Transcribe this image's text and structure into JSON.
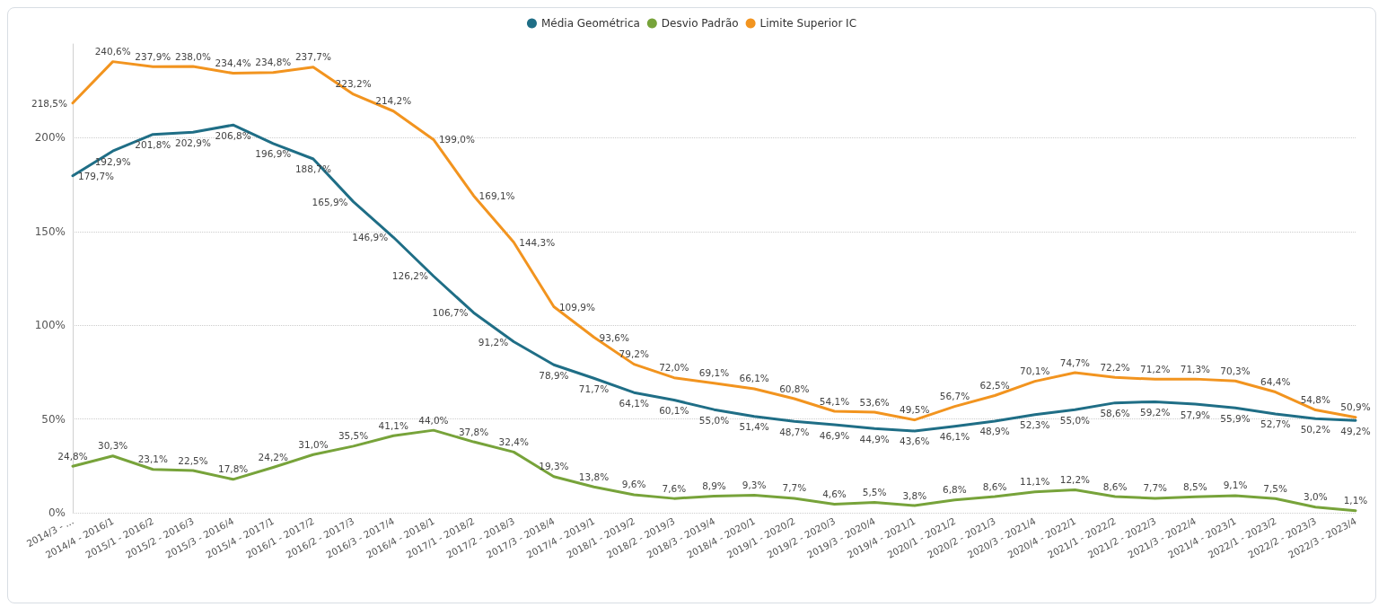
{
  "chart_data": {
    "type": "line",
    "categories": [
      "2014/3 - ...",
      "2014/4 - 2016/1",
      "2015/1 - 2016/2",
      "2015/2 - 2016/3",
      "2015/3 - 2016/4",
      "2015/4 - 2017/1",
      "2016/1 - 2017/2",
      "2016/2 - 2017/3",
      "2016/3 - 2017/4",
      "2016/4 - 2018/1",
      "2017/1 - 2018/2",
      "2017/2 - 2018/3",
      "2017/3 - 2018/4",
      "2017/4 - 2019/1",
      "2018/1 - 2019/2",
      "2018/2 - 2019/3",
      "2018/3 - 2019/4",
      "2018/4 - 2020/1",
      "2019/1 - 2020/2",
      "2019/2 - 2020/3",
      "2019/3 - 2020/4",
      "2019/4 - 2021/1",
      "2020/1 - 2021/2",
      "2020/2 - 2021/3",
      "2020/3 - 2021/4",
      "2020/4 - 2022/1",
      "2021/1 - 2022/2",
      "2021/2 - 2022/3",
      "2021/3 - 2022/4",
      "2021/4 - 2023/1",
      "2022/1 - 2023/2",
      "2022/2 - 2023/3",
      "2022/3 - 2023/4"
    ],
    "series": [
      {
        "name": "Média Geométrica",
        "color": "#1f6e86",
        "values": [
          179.7,
          192.9,
          201.8,
          202.9,
          206.8,
          196.9,
          188.7,
          165.9,
          146.9,
          126.2,
          106.7,
          91.2,
          78.9,
          71.7,
          64.1,
          60.1,
          55.0,
          51.4,
          48.7,
          46.9,
          44.9,
          43.6,
          46.1,
          48.9,
          52.3,
          55.0,
          58.6,
          59.2,
          57.9,
          55.9,
          52.7,
          50.2,
          49.2
        ],
        "value_labels": [
          "179,7%",
          "192,9%",
          "201,8%",
          "202,9%",
          "206,8%",
          "196,9%",
          "188,7%",
          "165,9%",
          "146,9%",
          "126,2%",
          "106,7%",
          "91,2%",
          "78,9%",
          "71,7%",
          "64,1%",
          "60,1%",
          "55,0%",
          "51,4%",
          "48,7%",
          "46,9%",
          "44,9%",
          "43,6%",
          "46,1%",
          "48,9%",
          "52,3%",
          "55,0%",
          "58,6%",
          "59,2%",
          "57,9%",
          "55,9%",
          "52,7%",
          "50,2%",
          "49,2%"
        ]
      },
      {
        "name": "Desvio Padrão",
        "color": "#77a33a",
        "values": [
          24.8,
          30.3,
          23.1,
          22.5,
          17.8,
          24.2,
          31.0,
          35.5,
          41.1,
          44.0,
          37.8,
          32.4,
          19.3,
          13.8,
          9.6,
          7.6,
          8.9,
          9.3,
          7.7,
          4.6,
          5.5,
          3.8,
          6.8,
          8.6,
          11.1,
          12.2,
          8.6,
          7.7,
          8.5,
          9.1,
          7.5,
          3.0,
          1.1
        ],
        "value_labels": [
          "24,8%",
          "30,3%",
          "23,1%",
          "22,5%",
          "17,8%",
          "24,2%",
          "31,0%",
          "35,5%",
          "41,1%",
          "44,0%",
          "37,8%",
          "32,4%",
          "19,3%",
          "13,8%",
          "9,6%",
          "7,6%",
          "8,9%",
          "9,3%",
          "7,7%",
          "4,6%",
          "5,5%",
          "3,8%",
          "6,8%",
          "8,6%",
          "11,1%",
          "12,2%",
          "8,6%",
          "7,7%",
          "8,5%",
          "9,1%",
          "7,5%",
          "3,0%",
          "1,1%"
        ]
      },
      {
        "name": "Limite Superior IC",
        "color": "#f2941f",
        "values": [
          218.5,
          240.6,
          237.9,
          238.0,
          234.4,
          234.8,
          237.7,
          223.2,
          214.2,
          199.0,
          169.1,
          144.3,
          109.9,
          93.6,
          79.2,
          72.0,
          69.1,
          66.1,
          60.8,
          54.1,
          53.6,
          49.5,
          56.7,
          62.5,
          70.1,
          74.7,
          72.2,
          71.2,
          71.3,
          70.3,
          64.4,
          54.8,
          50.9
        ],
        "value_labels": [
          "218,5%",
          "240,6%",
          "237,9%",
          "238,0%",
          "234,4%",
          "234,8%",
          "237,7%",
          "223,2%",
          "214,2%",
          "199,0%",
          "169,1%",
          "144,3%",
          "109,9%",
          "93,6%",
          "79,2%",
          "72,0%",
          "69,1%",
          "66,1%",
          "60,8%",
          "54,1%",
          "53,6%",
          "49,5%",
          "56,7%",
          "62,5%",
          "70,1%",
          "74,7%",
          "72,2%",
          "71,2%",
          "71,3%",
          "70,3%",
          "64,4%",
          "54,8%",
          "50,9%"
        ]
      }
    ],
    "ylim": [
      0,
      250
    ],
    "yticks": [
      {
        "value": 0,
        "label": "0%"
      },
      {
        "value": 50,
        "label": "50%"
      },
      {
        "value": 100,
        "label": "100%"
      },
      {
        "value": 150,
        "label": "150%"
      },
      {
        "value": 200,
        "label": "200%"
      }
    ],
    "grid": "y",
    "legend": "top",
    "marker": "none",
    "line_style": "solid"
  }
}
